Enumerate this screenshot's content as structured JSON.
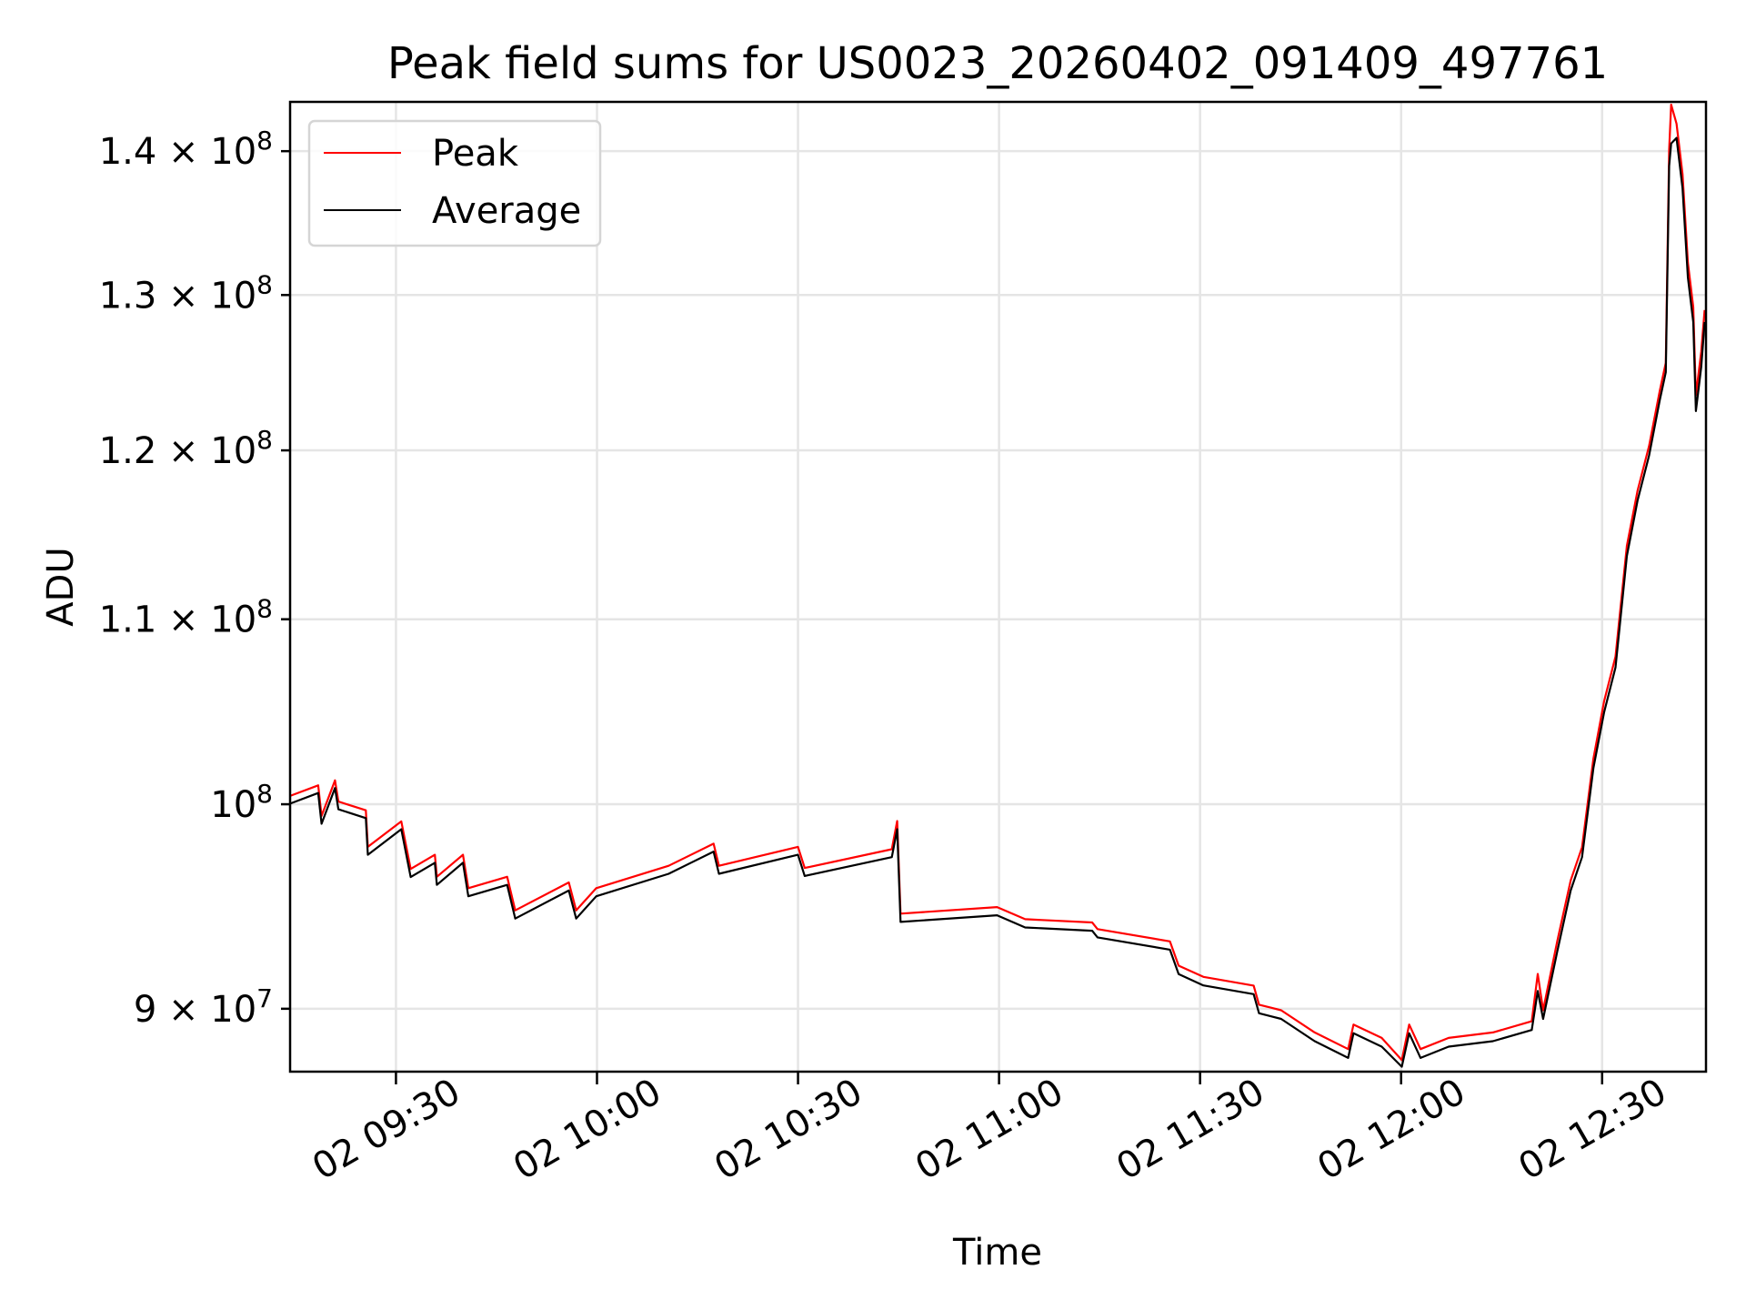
{
  "chart_data": {
    "type": "line",
    "title": "Peak field sums for US0023_20260402_091409_497761",
    "xlabel": "Time",
    "ylabel": "ADU",
    "x_unit": "minutes since 00:00 on day 02",
    "y_scale_factor": 100000000,
    "y_axis_type": "log",
    "xlim": [
      554.2,
      765.5
    ],
    "ylim": [
      0.8713,
      1.436
    ],
    "grid": true,
    "legend_position": "top-left",
    "x_ticks": [
      {
        "value": 570,
        "label": "02 09:30"
      },
      {
        "value": 600,
        "label": "02 10:00"
      },
      {
        "value": 630,
        "label": "02 10:30"
      },
      {
        "value": 660,
        "label": "02 11:00"
      },
      {
        "value": 690,
        "label": "02 11:30"
      },
      {
        "value": 720,
        "label": "02 12:00"
      },
      {
        "value": 750,
        "label": "02 12:30"
      }
    ],
    "y_ticks": [
      {
        "value": 1.4,
        "mant": "1.4 × 10",
        "exp": "8"
      },
      {
        "value": 1.3,
        "mant": "1.3 × 10",
        "exp": "8"
      },
      {
        "value": 1.2,
        "mant": "1.2 × 10",
        "exp": "8"
      },
      {
        "value": 1.1,
        "mant": "1.1 × 10",
        "exp": "8"
      },
      {
        "value": 1.0,
        "mant": "10",
        "exp": "8"
      },
      {
        "value": 0.9,
        "mant": "9 × 10",
        "exp": "7"
      }
    ],
    "series": [
      {
        "name": "Peak",
        "color": "#ff0000",
        "points": [
          [
            554.2,
            1.0043
          ],
          [
            558.4,
            1.0098
          ],
          [
            558.9,
            0.994
          ],
          [
            560.9,
            1.0124
          ],
          [
            561.4,
            1.0014
          ],
          [
            565.5,
            0.9969
          ],
          [
            565.8,
            0.9783
          ],
          [
            570.8,
            0.9912
          ],
          [
            572.2,
            0.9672
          ],
          [
            575.8,
            0.9743
          ],
          [
            576.1,
            0.9633
          ],
          [
            580.0,
            0.9743
          ],
          [
            580.8,
            0.9577
          ],
          [
            586.6,
            0.9633
          ],
          [
            587.8,
            0.9468
          ],
          [
            595.8,
            0.9605
          ],
          [
            596.9,
            0.9468
          ],
          [
            599.9,
            0.9577
          ],
          [
            610.7,
            0.9688
          ],
          [
            617.4,
            0.9799
          ],
          [
            618.2,
            0.9688
          ],
          [
            630.0,
            0.9783
          ],
          [
            631.0,
            0.9677
          ],
          [
            644.0,
            0.9771
          ],
          [
            644.8,
            0.9914
          ],
          [
            645.3,
            0.9452
          ],
          [
            659.7,
            0.9484
          ],
          [
            663.9,
            0.9425
          ],
          [
            673.9,
            0.9409
          ],
          [
            674.7,
            0.9377
          ],
          [
            685.5,
            0.9318
          ],
          [
            686.8,
            0.9202
          ],
          [
            690.5,
            0.9149
          ],
          [
            698.0,
            0.9108
          ],
          [
            698.8,
            0.9019
          ],
          [
            702.1,
            0.8993
          ],
          [
            707.1,
            0.8891
          ],
          [
            712.1,
            0.8815
          ],
          [
            712.9,
            0.8927
          ],
          [
            717.1,
            0.8866
          ],
          [
            720.1,
            0.8765
          ],
          [
            721.2,
            0.8927
          ],
          [
            722.9,
            0.8815
          ],
          [
            727.1,
            0.8866
          ],
          [
            733.7,
            0.8891
          ],
          [
            739.5,
            0.8942
          ],
          [
            740.4,
            0.9163
          ],
          [
            741.2,
            0.8993
          ],
          [
            743.3,
            0.9318
          ],
          [
            745.3,
            0.9615
          ],
          [
            747.0,
            0.9781
          ],
          [
            748.7,
            1.0238
          ],
          [
            750.3,
            1.0546
          ],
          [
            752.0,
            1.079
          ],
          [
            753.7,
            1.1424
          ],
          [
            755.3,
            1.1755
          ],
          [
            757.0,
            1.2027
          ],
          [
            758.6,
            1.2375
          ],
          [
            759.5,
            1.2553
          ],
          [
            760.0,
            1.401
          ],
          [
            760.3,
            1.434
          ],
          [
            761.1,
            1.42
          ],
          [
            762.0,
            1.3836
          ],
          [
            762.8,
            1.3218
          ],
          [
            763.6,
            1.292
          ],
          [
            764.0,
            1.2345
          ],
          [
            764.8,
            1.2628
          ],
          [
            765.3,
            1.29
          ]
        ]
      },
      {
        "name": "Average",
        "color": "#000000",
        "points": [
          [
            554.2,
            1.0003
          ],
          [
            558.4,
            1.0058
          ],
          [
            558.9,
            0.99
          ],
          [
            560.9,
            1.0084
          ],
          [
            561.4,
            0.9974
          ],
          [
            565.5,
            0.9929
          ],
          [
            565.8,
            0.9743
          ],
          [
            570.8,
            0.9872
          ],
          [
            572.2,
            0.9632
          ],
          [
            575.8,
            0.9703
          ],
          [
            576.1,
            0.9593
          ],
          [
            580.0,
            0.9703
          ],
          [
            580.8,
            0.9537
          ],
          [
            586.6,
            0.9593
          ],
          [
            587.8,
            0.9428
          ],
          [
            595.8,
            0.9565
          ],
          [
            596.9,
            0.9428
          ],
          [
            599.9,
            0.9537
          ],
          [
            610.7,
            0.9648
          ],
          [
            617.4,
            0.9759
          ],
          [
            618.2,
            0.9648
          ],
          [
            630.0,
            0.9743
          ],
          [
            631.0,
            0.9637
          ],
          [
            644.0,
            0.9731
          ],
          [
            644.8,
            0.9872
          ],
          [
            645.3,
            0.9412
          ],
          [
            659.7,
            0.9444
          ],
          [
            663.9,
            0.9385
          ],
          [
            673.9,
            0.9369
          ],
          [
            674.7,
            0.9337
          ],
          [
            685.5,
            0.9278
          ],
          [
            686.8,
            0.9162
          ],
          [
            690.5,
            0.9109
          ],
          [
            698.0,
            0.9068
          ],
          [
            698.8,
            0.8979
          ],
          [
            702.1,
            0.8953
          ],
          [
            707.1,
            0.8851
          ],
          [
            712.1,
            0.8775
          ],
          [
            712.9,
            0.8887
          ],
          [
            717.1,
            0.8826
          ],
          [
            720.1,
            0.8735
          ],
          [
            721.2,
            0.8887
          ],
          [
            722.9,
            0.8775
          ],
          [
            727.1,
            0.8826
          ],
          [
            733.7,
            0.8851
          ],
          [
            739.5,
            0.8902
          ],
          [
            740.4,
            0.9083
          ],
          [
            741.2,
            0.8953
          ],
          [
            743.3,
            0.9268
          ],
          [
            745.3,
            0.9565
          ],
          [
            747.0,
            0.9731
          ],
          [
            748.7,
            1.0188
          ],
          [
            750.3,
            1.0486
          ],
          [
            752.0,
            1.073
          ],
          [
            753.7,
            1.1364
          ],
          [
            755.3,
            1.1695
          ],
          [
            757.0,
            1.1967
          ],
          [
            758.6,
            1.2315
          ],
          [
            759.5,
            1.2493
          ],
          [
            760.0,
            1.3894
          ],
          [
            760.3,
            1.4055
          ],
          [
            761.1,
            1.4096
          ],
          [
            762.0,
            1.3736
          ],
          [
            762.8,
            1.3118
          ],
          [
            763.6,
            1.282
          ],
          [
            764.0,
            1.2245
          ],
          [
            764.8,
            1.2528
          ],
          [
            765.3,
            1.282
          ]
        ]
      }
    ]
  }
}
